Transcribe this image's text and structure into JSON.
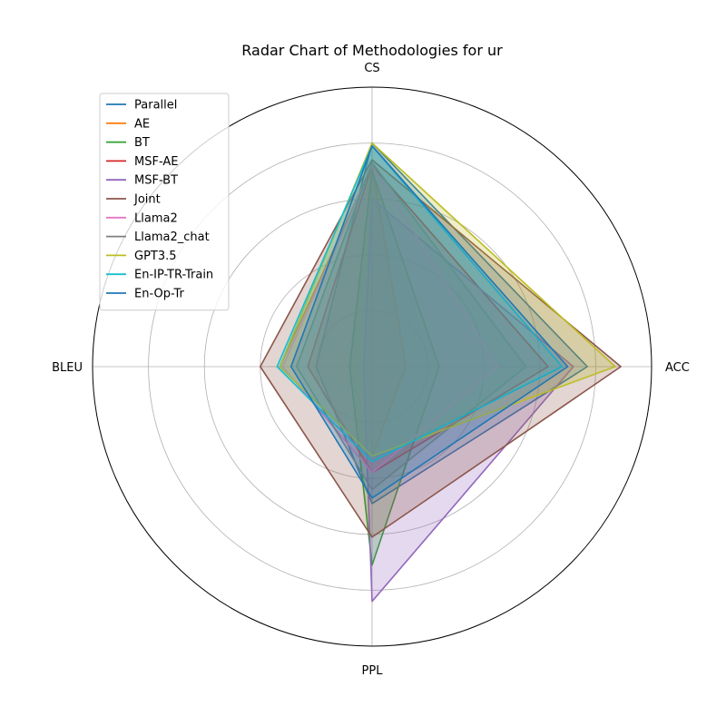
{
  "chart_data": {
    "type": "radar",
    "title": "Radar Chart of Methodologies for ur",
    "axes": [
      "CS",
      "ACC",
      "PPL",
      "BLEU"
    ],
    "rmax": 1.0,
    "grid": true,
    "grid_levels": [
      0.2,
      0.4,
      0.6,
      0.8
    ],
    "legend_position": "top-left",
    "series": [
      {
        "name": "Parallel",
        "color": "#1f77b4",
        "values": [
          0.8,
          0.77,
          0.49,
          0.2
        ]
      },
      {
        "name": "AE",
        "color": "#ff7f0e",
        "values": [
          0.72,
          0.12,
          0.32,
          0.33
        ]
      },
      {
        "name": "BT",
        "color": "#2ca02c",
        "values": [
          0.7,
          0.24,
          0.71,
          0.08
        ]
      },
      {
        "name": "MSF-AE",
        "color": "#d62728",
        "values": [
          0.72,
          0.63,
          0.38,
          0.23
        ]
      },
      {
        "name": "MSF-BT",
        "color": "#9467bd",
        "values": [
          0.6,
          0.72,
          0.84,
          0.03
        ]
      },
      {
        "name": "Joint",
        "color": "#8c564b",
        "values": [
          0.74,
          0.89,
          0.61,
          0.4
        ]
      },
      {
        "name": "Llama2",
        "color": "#e377c2",
        "values": [
          0.72,
          0.45,
          0.38,
          0.32
        ]
      },
      {
        "name": "Llama2_chat",
        "color": "#7f7f7f",
        "values": [
          0.73,
          0.55,
          0.44,
          0.27
        ]
      },
      {
        "name": "GPT3.5",
        "color": "#bcbd22",
        "values": [
          0.8,
          0.87,
          0.32,
          0.33
        ]
      },
      {
        "name": "En-IP-TR-Train",
        "color": "#17becf",
        "values": [
          0.79,
          0.68,
          0.34,
          0.34
        ]
      },
      {
        "name": "En-Op-Tr",
        "color": "#1f77b4",
        "values": [
          0.79,
          0.7,
          0.47,
          0.29
        ]
      }
    ]
  }
}
